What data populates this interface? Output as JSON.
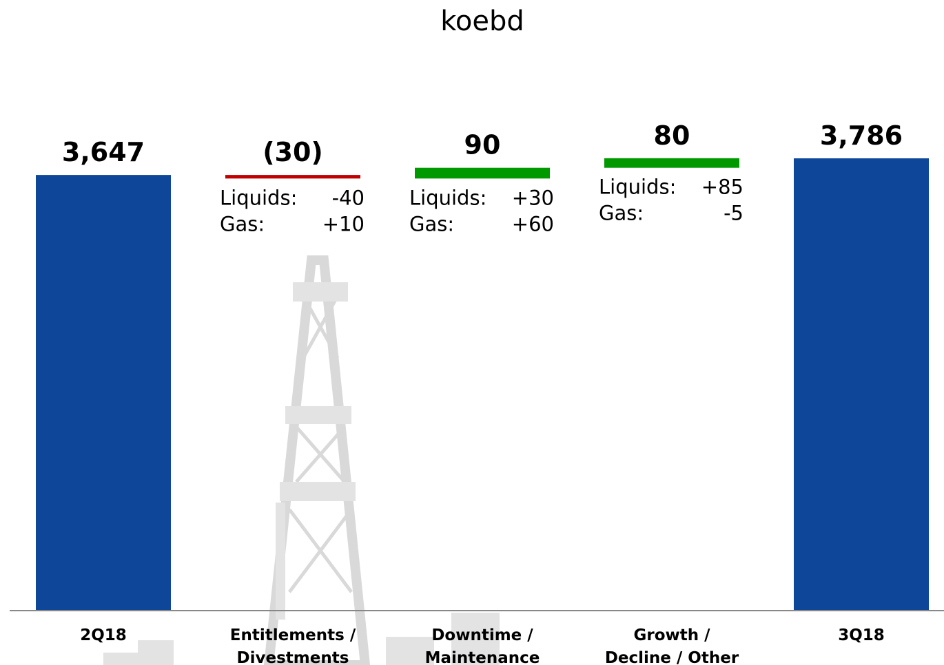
{
  "title": "koebd",
  "chart_data": {
    "type": "waterfall",
    "title": "koebd",
    "ylim": [
      0,
      3786
    ],
    "categories": [
      [
        "2Q18"
      ],
      [
        "Entitlements /",
        "Divestments"
      ],
      [
        "Downtime /",
        "Maintenance"
      ],
      [
        "Growth /",
        "Decline / Other"
      ],
      [
        "3Q18"
      ]
    ],
    "steps": [
      {
        "kind": "total",
        "value": 3647,
        "label": "3,647",
        "color": "#0e4799"
      },
      {
        "kind": "delta",
        "value": -30,
        "label": "(30)",
        "color": "#c00000",
        "notes": [
          {
            "name": "Liquids:",
            "value": "-40"
          },
          {
            "name": "Gas:",
            "value": "+10"
          }
        ]
      },
      {
        "kind": "delta",
        "value": 90,
        "label": "90",
        "color": "#009900",
        "notes": [
          {
            "name": "Liquids:",
            "value": "+30"
          },
          {
            "name": "Gas:",
            "value": "+60"
          }
        ]
      },
      {
        "kind": "delta",
        "value": 80,
        "label": "80",
        "color": "#009900",
        "notes": [
          {
            "name": "Liquids:",
            "value": "+85"
          },
          {
            "name": "Gas:",
            "value": "-5"
          }
        ]
      },
      {
        "kind": "total",
        "value": 3786,
        "label": "3,786",
        "color": "#0e4799"
      }
    ]
  }
}
